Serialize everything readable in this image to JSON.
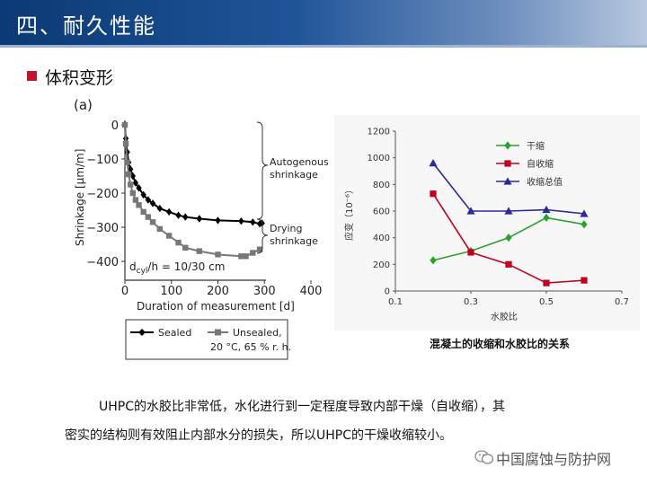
{
  "header": {
    "title": "四、耐久性能"
  },
  "section": {
    "title": "体积变形"
  },
  "figure_a": {
    "panel_label": "(a)",
    "xlabel": "Duration of measurement [d]",
    "ylabel": "Shrinkage [µm/m]",
    "x_ticks": [
      "0",
      "100",
      "200",
      "300",
      "400"
    ],
    "y_ticks": [
      "0",
      "−100",
      "−200",
      "−300",
      "−400"
    ],
    "annot_autogenous": [
      "Autogenous",
      "shrinkage"
    ],
    "annot_drying": [
      "Drying",
      "shrinkage"
    ],
    "annot_dcyl_pre": "d",
    "annot_dcyl_sub": "cyl",
    "annot_dcyl_post": "/h = 10/30 cm",
    "legend": {
      "sealed": "Sealed",
      "unsealed_line1": "Unsealed,",
      "unsealed_line2": "20 °C, 65 % r. h."
    }
  },
  "figure_b": {
    "caption": "混凝土的收缩和水胶比的关系",
    "xlabel": "水胶比",
    "ylabel": "应变（10⁻⁶）",
    "x_ticks": [
      "0.1",
      "0.3",
      "0.5",
      "0.7"
    ],
    "y_ticks": [
      "0",
      "200",
      "400",
      "600",
      "800",
      "1000",
      "1200"
    ]
  },
  "chart_data": [
    {
      "type": "line",
      "xlim": [
        0,
        400
      ],
      "ylim": [
        -400,
        0
      ],
      "grid": false,
      "legend_position": "bottom",
      "series": [
        {
          "name": "Sealed",
          "color": "#000000",
          "marker": "diamond",
          "x": [
            0,
            2,
            5,
            8,
            12,
            17,
            23,
            30,
            40,
            50,
            60,
            75,
            95,
            115,
            130,
            160,
            200,
            250,
            275,
            290,
            295
          ],
          "y": [
            0,
            -40,
            -80,
            -110,
            -130,
            -150,
            -170,
            -185,
            -205,
            -220,
            -230,
            -245,
            -255,
            -265,
            -270,
            -275,
            -280,
            -282,
            -285,
            -290,
            -288
          ]
        },
        {
          "name": "Unsealed, 20 °C, 65 % r. h.",
          "color": "#777777",
          "marker": "square",
          "x": [
            0,
            2,
            5,
            8,
            12,
            17,
            23,
            30,
            40,
            50,
            60,
            75,
            95,
            115,
            130,
            160,
            200,
            250,
            260,
            275,
            290
          ],
          "y": [
            0,
            -55,
            -110,
            -145,
            -175,
            -200,
            -220,
            -235,
            -255,
            -270,
            -285,
            -305,
            -325,
            -345,
            -360,
            -370,
            -380,
            -385,
            -385,
            -375,
            -365
          ]
        }
      ]
    },
    {
      "type": "line",
      "xlim": [
        0.1,
        0.7
      ],
      "ylim": [
        0,
        1200
      ],
      "grid": false,
      "legend_position": "top-center",
      "series": [
        {
          "name": "干缩",
          "color": "#2ca02c",
          "marker": "diamond",
          "x": [
            0.2,
            0.3,
            0.4,
            0.5,
            0.6
          ],
          "y": [
            230,
            300,
            400,
            550,
            500
          ]
        },
        {
          "name": "自收缩",
          "color": "#c00020",
          "marker": "square",
          "x": [
            0.2,
            0.3,
            0.4,
            0.5,
            0.6
          ],
          "y": [
            730,
            290,
            200,
            60,
            80
          ]
        },
        {
          "name": "收缩总值",
          "color": "#2a2a9a",
          "marker": "triangle",
          "x": [
            0.2,
            0.3,
            0.4,
            0.5,
            0.6
          ],
          "y": [
            960,
            600,
            600,
            610,
            580
          ]
        }
      ]
    }
  ],
  "body": {
    "line1": "UHPC的水胶比非常低，水化进行到一定程度导致内部干燥（自收缩），其",
    "line2": "密实的结构则有效阻止内部水分的损失，所以UHPC的干燥收缩较小。"
  },
  "watermark": {
    "text": "中国腐蚀与防护网"
  }
}
